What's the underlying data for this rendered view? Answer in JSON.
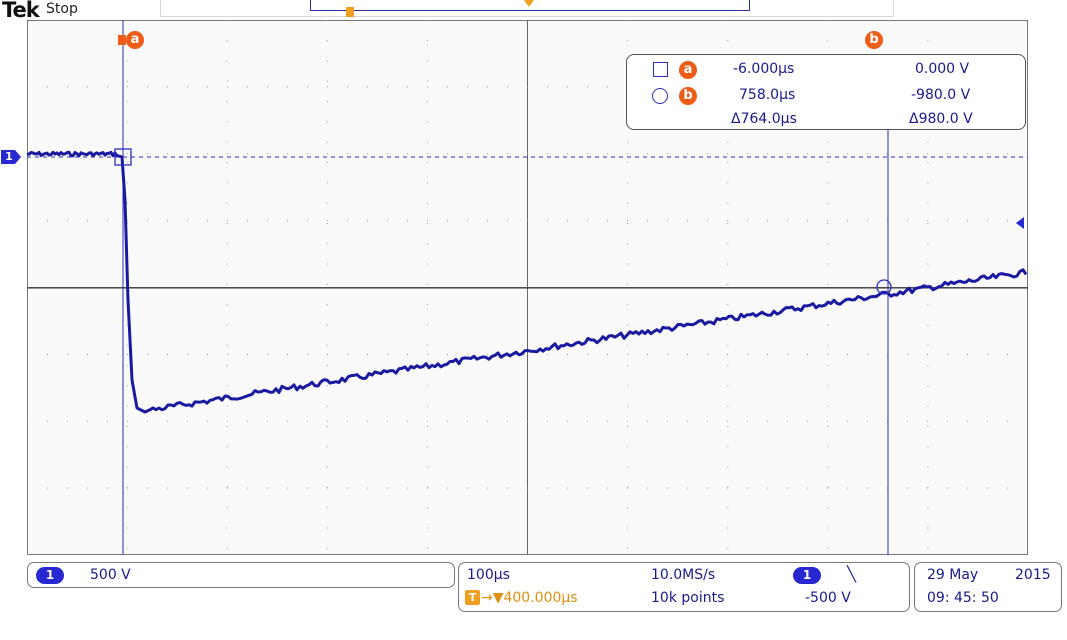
{
  "header": {
    "brand": "Tek",
    "run_state": "Stop"
  },
  "cursors": {
    "a": {
      "label": "a",
      "time": "-6.000µs",
      "volts": "0.000 V"
    },
    "b": {
      "label": "b",
      "time": "758.0µs",
      "volts": "-980.0 V"
    },
    "delta": {
      "time": "Δ764.0µs",
      "volts": "Δ980.0 V"
    }
  },
  "channel": {
    "number": "1",
    "scale": "500 V"
  },
  "horizontal": {
    "time_div": "100µs",
    "sample_rate": "10.0MS/s",
    "trigger_pos": "→▼400.000µs",
    "record_length": "10k points"
  },
  "trigger": {
    "source": "1",
    "slope": "╲",
    "level": "-500 V"
  },
  "datetime": {
    "date_day": "29 May",
    "year": "2015",
    "time": "09: 45: 50"
  },
  "markers": {
    "channel_marker": "1",
    "trigger_marker": "T"
  },
  "colors": {
    "trace": "#1a1aa0",
    "cursor_label": "#ee5c18",
    "trigger": "#f0a020"
  }
}
